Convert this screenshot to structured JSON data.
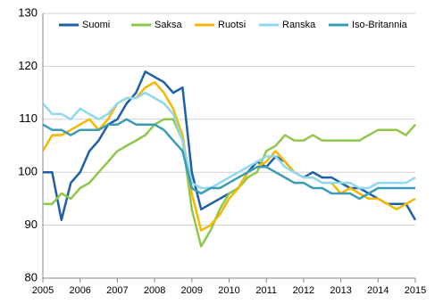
{
  "chart_data": {
    "type": "line",
    "x": [
      2005,
      2005.25,
      2005.5,
      2005.75,
      2006,
      2006.25,
      2006.5,
      2006.75,
      2007,
      2007.25,
      2007.5,
      2007.75,
      2008,
      2008.25,
      2008.5,
      2008.75,
      2009,
      2009.25,
      2009.5,
      2009.75,
      2010,
      2010.25,
      2010.5,
      2010.75,
      2011,
      2011.25,
      2011.5,
      2011.75,
      2012,
      2012.25,
      2012.5,
      2012.75,
      2013,
      2013.25,
      2013.5,
      2013.75,
      2014,
      2014.25,
      2014.5,
      2014.75,
      2015
    ],
    "series": [
      {
        "name": "Suomi",
        "color": "#1f5fa8",
        "values": [
          100,
          100,
          91,
          98,
          100,
          104,
          106,
          109,
          110,
          113,
          115,
          119,
          118,
          117,
          115,
          116,
          100,
          93,
          94,
          95,
          96,
          97,
          100,
          102,
          101,
          103,
          102,
          100,
          99,
          100,
          99,
          99,
          98,
          97,
          97,
          96,
          95,
          94,
          94,
          94,
          91
        ]
      },
      {
        "name": "Saksa",
        "color": "#8fc74a",
        "values": [
          94,
          94,
          96,
          95,
          97,
          98,
          100,
          102,
          104,
          105,
          106,
          107,
          109,
          110,
          110,
          106,
          93,
          86,
          89,
          93,
          96,
          97,
          99,
          100,
          104,
          105,
          107,
          106,
          106,
          107,
          106,
          106,
          106,
          106,
          106,
          107,
          108,
          108,
          108,
          107,
          109
        ]
      },
      {
        "name": "Ruotsi",
        "color": "#f5b800",
        "values": [
          104,
          107,
          107,
          108,
          109,
          110,
          108,
          110,
          113,
          114,
          114,
          116,
          117,
          115,
          112,
          107,
          96,
          89,
          90,
          92,
          95,
          97,
          100,
          101,
          102,
          104,
          102,
          100,
          99,
          99,
          98,
          98,
          96,
          97,
          96,
          95,
          95,
          94,
          93,
          94,
          95
        ]
      },
      {
        "name": "Ranska",
        "color": "#8fd8f0",
        "values": [
          113,
          111,
          111,
          110,
          112,
          111,
          110,
          111,
          113,
          114,
          114,
          115,
          114,
          113,
          111,
          106,
          98,
          97,
          97,
          98,
          99,
          100,
          101,
          102,
          103,
          103,
          101,
          100,
          99,
          99,
          98,
          98,
          98,
          98,
          97,
          97,
          98,
          98,
          98,
          98,
          99
        ]
      },
      {
        "name": "Iso-Britannia",
        "color": "#3a9bb5",
        "values": [
          109,
          108,
          108,
          107,
          108,
          108,
          108,
          109,
          109,
          110,
          109,
          109,
          109,
          108,
          106,
          104,
          97,
          96,
          97,
          97,
          98,
          99,
          100,
          101,
          101,
          100,
          99,
          98,
          98,
          97,
          97,
          96,
          96,
          96,
          95,
          96,
          97,
          97,
          97,
          97,
          97
        ]
      }
    ],
    "xlim": [
      2005,
      2015
    ],
    "xticks": [
      2005,
      2006,
      2007,
      2008,
      2009,
      2010,
      2011,
      2012,
      2013,
      2014,
      2015
    ],
    "ylim": [
      80,
      130
    ],
    "yticks": [
      80,
      90,
      100,
      110,
      120,
      130
    ],
    "grid": true
  }
}
